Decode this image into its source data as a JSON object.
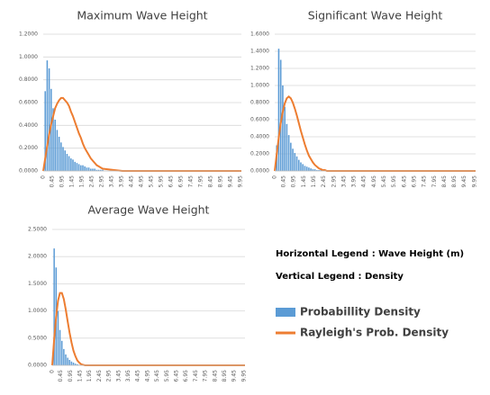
{
  "chart_data": [
    {
      "type": "bar-line",
      "title": "Maximum Wave Height",
      "x": [
        0,
        0.1,
        0.2,
        0.3,
        0.4,
        0.5,
        0.6,
        0.7,
        0.8,
        0.9,
        1.0,
        1.1,
        1.2,
        1.3,
        1.4,
        1.5,
        1.6,
        1.7,
        1.8,
        1.9,
        2.0,
        2.1,
        2.2,
        2.3,
        2.4,
        2.5,
        2.6,
        2.7,
        2.8,
        2.9,
        3.0,
        4,
        5,
        6,
        7,
        8,
        9,
        10
      ],
      "series": [
        {
          "name": "Probabillity Density",
          "kind": "bar",
          "color": "#5b9bd5",
          "values": [
            null,
            0.7,
            0.97,
            0.9,
            0.72,
            0.55,
            0.45,
            0.36,
            0.3,
            0.25,
            0.21,
            0.18,
            0.15,
            0.13,
            0.11,
            0.1,
            0.08,
            0.07,
            0.06,
            0.05,
            0.05,
            0.04,
            0.03,
            0.03,
            0.02,
            0.02,
            0.02,
            0.01,
            0.01,
            0.01,
            0.01,
            null,
            null,
            null,
            null,
            null,
            null,
            null
          ]
        },
        {
          "name": "Rayleigh's Prob. Density",
          "kind": "line",
          "color": "#ed7d31",
          "values": [
            0,
            0.11,
            0.22,
            0.32,
            0.41,
            0.48,
            0.55,
            0.59,
            0.62,
            0.64,
            0.64,
            0.62,
            0.6,
            0.57,
            0.52,
            0.48,
            0.43,
            0.38,
            0.33,
            0.29,
            0.24,
            0.2,
            0.17,
            0.14,
            0.11,
            0.09,
            0.07,
            0.05,
            0.04,
            0.03,
            0.02,
            0,
            0,
            0,
            0,
            0,
            0,
            0
          ]
        }
      ],
      "xlim": [
        0,
        10
      ],
      "xticks": [
        0,
        0.45,
        0.95,
        1.45,
        1.95,
        2.45,
        2.95,
        3.45,
        3.95,
        4.45,
        4.95,
        5.45,
        5.95,
        6.45,
        6.95,
        7.45,
        7.95,
        8.45,
        8.95,
        9.45,
        9.95
      ],
      "ylim": [
        0,
        1.2
      ],
      "yticks": [
        {
          "value": 0,
          "label": "0.0000"
        },
        {
          "value": 0.2,
          "label": "0.2000"
        },
        {
          "value": 0.4,
          "label": "0.4000"
        },
        {
          "value": 0.6,
          "label": "0.6000"
        },
        {
          "value": 0.8,
          "label": "0.8000"
        },
        {
          "value": 1.0,
          "label": "1.0000"
        },
        {
          "value": 1.2,
          "label": "1.2000"
        }
      ],
      "grid": true
    },
    {
      "type": "bar-line",
      "title": "Significant Wave Height",
      "x": [
        0,
        0.1,
        0.2,
        0.3,
        0.4,
        0.5,
        0.6,
        0.7,
        0.8,
        0.9,
        1.0,
        1.1,
        1.2,
        1.3,
        1.4,
        1.5,
        1.6,
        1.7,
        1.8,
        1.9,
        2.0,
        2.1,
        2.2,
        2.3,
        2.4,
        2.5,
        2.6,
        2.7,
        2.8,
        2.9,
        3.0,
        4,
        5,
        6,
        7,
        8,
        9,
        10
      ],
      "series": [
        {
          "kind": "bar",
          "color": "#5b9bd5",
          "values": [
            null,
            0.3,
            1.43,
            1.3,
            1.0,
            0.75,
            0.55,
            0.42,
            0.33,
            0.26,
            0.21,
            0.17,
            0.13,
            0.1,
            0.08,
            0.06,
            0.05,
            0.04,
            0.03,
            0.02,
            0.02,
            0.01,
            0.01,
            0.01,
            0.01,
            0.01,
            null,
            null,
            null,
            null,
            null,
            null,
            null,
            null,
            null,
            null,
            null,
            null
          ]
        },
        {
          "kind": "line",
          "color": "#ed7d31",
          "values": [
            0,
            0.2,
            0.39,
            0.56,
            0.69,
            0.79,
            0.85,
            0.87,
            0.85,
            0.8,
            0.73,
            0.65,
            0.56,
            0.47,
            0.39,
            0.31,
            0.24,
            0.18,
            0.14,
            0.1,
            0.07,
            0.05,
            0.03,
            0.02,
            0.01,
            0.01,
            0,
            0,
            0,
            0,
            0,
            0,
            0,
            0,
            0,
            0,
            0,
            0
          ]
        }
      ],
      "xlim": [
        0,
        10
      ],
      "xticks": [
        0,
        0.45,
        0.95,
        1.45,
        1.95,
        2.45,
        2.95,
        3.45,
        3.95,
        4.45,
        4.95,
        5.45,
        5.95,
        6.45,
        6.95,
        7.45,
        7.95,
        8.45,
        8.95,
        9.45,
        9.95
      ],
      "ylim": [
        0,
        1.6
      ],
      "yticks": [
        {
          "value": 0,
          "label": "0.0000"
        },
        {
          "value": 0.2,
          "label": "0.2000"
        },
        {
          "value": 0.4,
          "label": "0.4000"
        },
        {
          "value": 0.6,
          "label": "0.6000"
        },
        {
          "value": 0.8,
          "label": "0.8000"
        },
        {
          "value": 1.0,
          "label": "1.0000"
        },
        {
          "value": 1.2,
          "label": "1.2000"
        },
        {
          "value": 1.4,
          "label": "1.4000"
        },
        {
          "value": 1.6,
          "label": "1.6000"
        }
      ],
      "grid": true
    },
    {
      "type": "bar-line",
      "title": "Average Wave Height",
      "x": [
        0,
        0.1,
        0.2,
        0.3,
        0.4,
        0.5,
        0.6,
        0.7,
        0.8,
        0.9,
        1.0,
        1.1,
        1.2,
        1.3,
        1.4,
        1.5,
        1.6,
        1.7,
        1.8,
        1.9,
        2.0,
        2.1,
        2.2,
        2.3,
        2.4,
        2.5,
        2.6,
        2.7,
        2.8,
        2.9,
        3.0,
        4,
        5,
        6,
        7,
        8,
        9,
        10
      ],
      "series": [
        {
          "kind": "bar",
          "color": "#5b9bd5",
          "values": [
            null,
            2.15,
            1.8,
            1.0,
            0.65,
            0.45,
            0.3,
            0.2,
            0.14,
            0.1,
            0.07,
            0.05,
            0.03,
            0.02,
            0.01,
            0.01,
            null,
            null,
            null,
            null,
            null,
            null,
            null,
            null,
            null,
            null,
            null,
            null,
            null,
            null,
            null,
            null,
            null,
            null,
            null,
            null,
            null,
            null
          ]
        },
        {
          "kind": "line",
          "color": "#ed7d31",
          "values": [
            0,
            0.48,
            0.89,
            1.19,
            1.33,
            1.33,
            1.22,
            1.03,
            0.81,
            0.6,
            0.42,
            0.27,
            0.17,
            0.09,
            0.05,
            0.02,
            0.01,
            0,
            0,
            0,
            0,
            0,
            0,
            0,
            0,
            0,
            0,
            0,
            0,
            0,
            0,
            0,
            0,
            0,
            0,
            0,
            0,
            0
          ]
        }
      ],
      "xlim": [
        0,
        10
      ],
      "xticks": [
        0,
        0.45,
        0.95,
        1.45,
        1.95,
        2.45,
        2.95,
        3.45,
        3.95,
        4.45,
        4.95,
        5.45,
        5.95,
        6.45,
        6.95,
        7.45,
        7.95,
        8.45,
        8.95,
        9.45,
        9.95
      ],
      "ylim": [
        0,
        2.5
      ],
      "yticks": [
        {
          "value": 0,
          "label": "0.0000"
        },
        {
          "value": 0.5,
          "label": "0.5000"
        },
        {
          "value": 1.0,
          "label": "1.0000"
        },
        {
          "value": 1.5,
          "label": "1.5000"
        },
        {
          "value": 2.0,
          "label": "2.0000"
        },
        {
          "value": 2.5,
          "label": "2.5000"
        }
      ],
      "grid": true
    }
  ],
  "annotations": [
    "Horizontal Legend : Wave Height (m)",
    "Vertical Legend : Density"
  ]
}
